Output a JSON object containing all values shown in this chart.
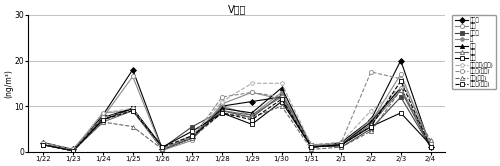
{
  "title": "V濃度",
  "ylabel": "(ng/m³)",
  "xlabels": [
    "1/22",
    "1/23",
    "1/24",
    "1/25",
    "1/26",
    "1/27",
    "1/28",
    "1/29",
    "1/30",
    "1/31",
    "2/1",
    "2/2",
    "2/3",
    "2/4"
  ],
  "ylim": [
    0,
    30
  ],
  "yticks": [
    0,
    10,
    20,
    30
  ],
  "series": [
    {
      "label": "泉大津",
      "color": "#000000",
      "marker": "D",
      "markersize": 3,
      "linestyle": "-",
      "linewidth": 0.8,
      "filled": true,
      "values": [
        2.0,
        0.5,
        8.0,
        18.0,
        0.5,
        3.0,
        10.0,
        11.0,
        12.0,
        1.0,
        2.0,
        7.0,
        20.0,
        1.0
      ]
    },
    {
      "label": "大夢",
      "color": "#888888",
      "marker": "o",
      "markersize": 3,
      "linestyle": "-",
      "linewidth": 0.8,
      "filled": false,
      "values": [
        1.5,
        0.3,
        7.5,
        16.5,
        0.3,
        2.5,
        10.5,
        13.0,
        11.5,
        1.0,
        1.5,
        6.5,
        17.0,
        1.5
      ]
    },
    {
      "label": "大阪市",
      "color": "#444444",
      "marker": "s",
      "markersize": 3,
      "linestyle": "-",
      "linewidth": 0.8,
      "filled": true,
      "values": [
        1.5,
        0.2,
        7.0,
        9.5,
        0.8,
        5.5,
        9.0,
        7.5,
        12.5,
        1.5,
        1.0,
        5.0,
        12.0,
        1.0
      ]
    },
    {
      "label": "堺",
      "color": "#888888",
      "marker": "p",
      "markersize": 3,
      "linestyle": "-",
      "linewidth": 0.8,
      "filled": true,
      "values": [
        1.5,
        0.3,
        8.5,
        9.0,
        0.5,
        3.5,
        10.0,
        8.0,
        13.0,
        1.5,
        1.5,
        7.0,
        14.0,
        1.0
      ]
    },
    {
      "label": "豊中",
      "color": "#000000",
      "marker": "^",
      "markersize": 3,
      "linestyle": "-",
      "linewidth": 0.8,
      "filled": true,
      "values": [
        1.5,
        0.2,
        7.5,
        9.5,
        0.5,
        3.0,
        9.5,
        8.5,
        14.0,
        1.0,
        1.5,
        6.5,
        14.0,
        1.0
      ]
    },
    {
      "label": "吹田",
      "color": "#666666",
      "marker": "^",
      "markersize": 3,
      "linestyle": "-",
      "linewidth": 0.8,
      "filled": false,
      "values": [
        1.5,
        0.2,
        6.5,
        9.0,
        0.5,
        3.5,
        9.0,
        8.0,
        12.0,
        1.0,
        1.5,
        6.0,
        13.5,
        1.0
      ]
    },
    {
      "label": "八尾",
      "color": "#000000",
      "marker": "s",
      "markersize": 3,
      "linestyle": "-",
      "linewidth": 0.8,
      "filled": false,
      "values": [
        1.5,
        0.2,
        7.0,
        9.5,
        1.0,
        4.5,
        8.5,
        6.0,
        11.0,
        1.0,
        1.5,
        5.5,
        8.5,
        1.5
      ]
    },
    {
      "label": "河内長野(自排)",
      "color": "#aaaaaa",
      "marker": "p",
      "markersize": 3,
      "linestyle": "--",
      "linewidth": 0.8,
      "filled": false,
      "values": [
        2.0,
        0.5,
        8.5,
        9.5,
        0.5,
        3.5,
        11.0,
        15.0,
        15.0,
        1.5,
        2.0,
        9.0,
        14.0,
        1.5
      ]
    },
    {
      "label": "大阪市(自排)",
      "color": "#888888",
      "marker": "o",
      "markersize": 3,
      "linestyle": "--",
      "linewidth": 0.8,
      "filled": false,
      "values": [
        2.0,
        0.5,
        7.5,
        9.0,
        0.8,
        3.0,
        12.0,
        13.0,
        12.0,
        1.5,
        2.0,
        17.5,
        16.0,
        2.0
      ]
    },
    {
      "label": "吹田(自排)",
      "color": "#666666",
      "marker": "^",
      "markersize": 3,
      "linestyle": "--",
      "linewidth": 0.8,
      "filled": false,
      "values": [
        1.5,
        0.2,
        6.5,
        5.5,
        0.5,
        3.0,
        8.5,
        7.5,
        10.0,
        0.5,
        1.0,
        4.5,
        13.5,
        2.5
      ]
    },
    {
      "label": "東大阪(自排)",
      "color": "#000000",
      "marker": "s",
      "markersize": 3,
      "linestyle": "--",
      "linewidth": 0.8,
      "filled": false,
      "values": [
        1.5,
        0.2,
        7.0,
        9.0,
        1.0,
        3.5,
        8.5,
        7.0,
        11.5,
        1.0,
        1.5,
        5.5,
        15.5,
        1.0
      ]
    }
  ]
}
